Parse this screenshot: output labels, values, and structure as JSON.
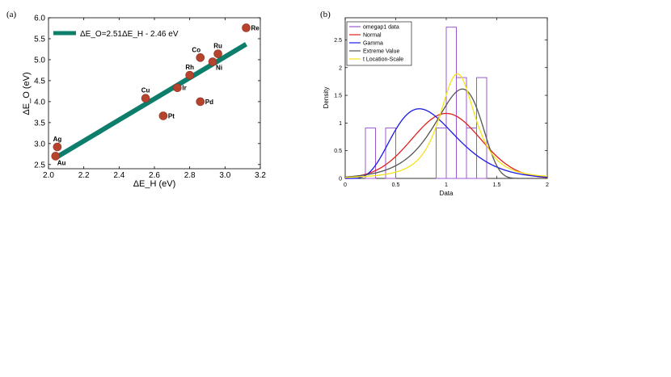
{
  "chart_data": [
    {
      "panel": "(a)",
      "type": "scatter",
      "xlabel": "ΔE_H (eV)",
      "ylabel": "ΔE_O (eV)",
      "xlim": [
        2.0,
        3.2
      ],
      "ylim": [
        2.4,
        6.0
      ],
      "xticks": [
        "2.0",
        "2.2",
        "2.4",
        "2.6",
        "2.8",
        "3.0",
        "3.2"
      ],
      "yticks": [
        "2.5",
        "3.0",
        "3.5",
        "4.0",
        "4.5",
        "5.0",
        "5.5",
        "6.0"
      ],
      "colors": {
        "points": "#b5432e",
        "fit": "#0d7e6b"
      },
      "fit": {
        "label": "ΔE_O=2.51ΔE_H - 2.46 eV",
        "slope": 2.51,
        "intercept": -2.46,
        "x_range": [
          2.05,
          3.12
        ]
      },
      "points": [
        {
          "label": "Ag",
          "x": 2.05,
          "y": 2.92,
          "pos": "above"
        },
        {
          "label": "Au",
          "x": 2.04,
          "y": 2.7,
          "pos": "below"
        },
        {
          "label": "Cu",
          "x": 2.55,
          "y": 4.08,
          "pos": "above"
        },
        {
          "label": "Pt",
          "x": 2.65,
          "y": 3.66,
          "pos": "right"
        },
        {
          "label": "Ir",
          "x": 2.73,
          "y": 4.33,
          "pos": "right"
        },
        {
          "label": "Rh",
          "x": 2.8,
          "y": 4.63,
          "pos": "above"
        },
        {
          "label": "Pd",
          "x": 2.86,
          "y": 4.0,
          "pos": "right"
        },
        {
          "label": "Co",
          "x": 2.86,
          "y": 5.05,
          "pos": "aboveleft"
        },
        {
          "label": "Ni",
          "x": 2.93,
          "y": 4.95,
          "pos": "belowright"
        },
        {
          "label": "Ru",
          "x": 2.96,
          "y": 5.14,
          "pos": "above"
        },
        {
          "label": "Re",
          "x": 3.12,
          "y": 5.76,
          "pos": "right"
        }
      ]
    },
    {
      "panel": "(b)",
      "type": "histogram+line",
      "xlabel": "Data",
      "ylabel": "Density",
      "xlim": [
        0,
        2
      ],
      "ylim": [
        0,
        2.9
      ],
      "xticks": [
        "0",
        "0.5",
        "1",
        "1.5",
        "2"
      ],
      "yticks": [
        "0",
        "0.5",
        "1",
        "1.5",
        "2",
        "2.5"
      ],
      "histogram": {
        "name": "omegap1 data",
        "color": "#9b59d0",
        "bins": [
          {
            "x0": 0.2,
            "x1": 0.3,
            "density": 0.91
          },
          {
            "x0": 0.4,
            "x1": 0.5,
            "density": 0.91
          },
          {
            "x0": 0.9,
            "x1": 1.0,
            "density": 0.91
          },
          {
            "x0": 1.0,
            "x1": 1.1,
            "density": 2.73
          },
          {
            "x0": 1.1,
            "x1": 1.2,
            "density": 1.82
          },
          {
            "x0": 1.2,
            "x1": 1.3,
            "density": 0.91
          },
          {
            "x0": 1.3,
            "x1": 1.4,
            "density": 1.82
          }
        ]
      },
      "series": [
        {
          "name": "Normal",
          "color": "#e02020",
          "dist": "normal",
          "params": {
            "mu": 1.0,
            "sigma": 0.34
          }
        },
        {
          "name": "Gamma",
          "color": "#1a1ae6",
          "dist": "gamma",
          "params": {
            "k": 6.5,
            "theta": 0.1333
          }
        },
        {
          "name": "Extreme Value",
          "color": "#555555",
          "dist": "gumbel_min",
          "params": {
            "mu": 1.16,
            "beta": 0.228
          }
        },
        {
          "name": "t Location-Scale",
          "color": "#f5e31a",
          "dist": "t",
          "params": {
            "mu": 1.11,
            "sigma": 0.19,
            "nu": 2.3
          }
        }
      ]
    }
  ]
}
